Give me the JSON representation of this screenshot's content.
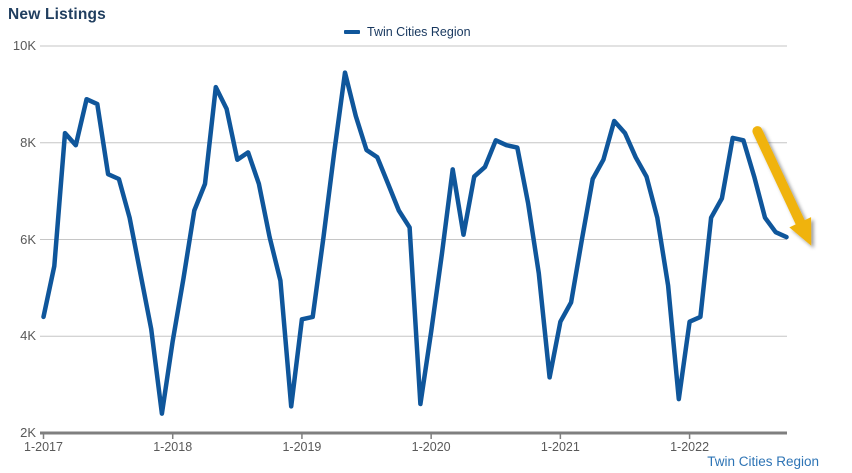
{
  "header": {
    "title": "New Listings"
  },
  "legend": {
    "label": "Twin Cities Region",
    "swatch_color": "#0F569B"
  },
  "footer": {
    "link_label": "Twin Cities Region"
  },
  "colors": {
    "line": "#0F569B",
    "title_text": "#203E5F",
    "legend_text": "#17375E",
    "axis_label": "#595959",
    "gridline": "#C6C6C6",
    "axis_line": "#7F7F7F",
    "arrow": "#F0B310",
    "footer_link": "#2E74B5"
  },
  "chart_data": {
    "type": "line",
    "title": "New Listings",
    "xlabel": "",
    "ylabel": "",
    "ylim": [
      2000,
      10000
    ],
    "grid": "horizontal",
    "legend_position": "top-center",
    "x": [
      "1-2017",
      "2-2017",
      "3-2017",
      "4-2017",
      "5-2017",
      "6-2017",
      "7-2017",
      "8-2017",
      "9-2017",
      "10-2017",
      "11-2017",
      "12-2017",
      "1-2018",
      "2-2018",
      "3-2018",
      "4-2018",
      "5-2018",
      "6-2018",
      "7-2018",
      "8-2018",
      "9-2018",
      "10-2018",
      "11-2018",
      "12-2018",
      "1-2019",
      "2-2019",
      "3-2019",
      "4-2019",
      "5-2019",
      "6-2019",
      "7-2019",
      "8-2019",
      "9-2019",
      "10-2019",
      "11-2019",
      "12-2019",
      "1-2020",
      "2-2020",
      "3-2020",
      "4-2020",
      "5-2020",
      "6-2020",
      "7-2020",
      "8-2020",
      "9-2020",
      "10-2020",
      "11-2020",
      "12-2020",
      "1-2021",
      "2-2021",
      "3-2021",
      "4-2021",
      "5-2021",
      "6-2021",
      "7-2021",
      "8-2021",
      "9-2021",
      "10-2021",
      "11-2021",
      "12-2021",
      "1-2022",
      "2-2022",
      "3-2022",
      "4-2022",
      "5-2022",
      "6-2022",
      "7-2022",
      "8-2022",
      "9-2022",
      "10-2022"
    ],
    "series": [
      {
        "name": "Twin Cities Region",
        "color": "#0F569B",
        "values": [
          4400,
          5450,
          8200,
          7950,
          8900,
          8800,
          7350,
          7250,
          6450,
          5300,
          4150,
          2400,
          3900,
          5200,
          6600,
          7150,
          9150,
          8700,
          7650,
          7800,
          7150,
          6050,
          5150,
          2550,
          4350,
          4400,
          6050,
          7800,
          9450,
          8550,
          7850,
          7700,
          7150,
          6600,
          6250,
          2600,
          4100,
          5700,
          7450,
          6100,
          7300,
          7500,
          8050,
          7950,
          7900,
          6750,
          5300,
          3150,
          4300,
          4700,
          6000,
          7250,
          7650,
          8450,
          8200,
          7700,
          7300,
          6450,
          5050,
          2700,
          4300,
          4400,
          6450,
          6850,
          8100,
          8050,
          7300,
          6450,
          6150,
          6050
        ]
      }
    ],
    "y_ticks": [
      {
        "label": "10K",
        "value": 10000
      },
      {
        "label": "8K",
        "value": 8000
      },
      {
        "label": "6K",
        "value": 6000
      },
      {
        "label": "4K",
        "value": 4000
      },
      {
        "label": "2K",
        "value": 2000
      }
    ],
    "x_ticks": [
      {
        "label": "1-2017",
        "month_index": 0
      },
      {
        "label": "1-2018",
        "month_index": 12
      },
      {
        "label": "1-2019",
        "month_index": 24
      },
      {
        "label": "1-2020",
        "month_index": 36
      },
      {
        "label": "1-2021",
        "month_index": 48
      },
      {
        "label": "1-2022",
        "month_index": 60
      }
    ],
    "annotation": {
      "type": "arrow",
      "color": "#F0B310",
      "direction": "down-right",
      "meaning": "highlighting declining new listings at end of series",
      "from": {
        "month_index": 66.3,
        "value": 8240
      },
      "to": {
        "month_index": 71.3,
        "value": 5870
      }
    }
  }
}
